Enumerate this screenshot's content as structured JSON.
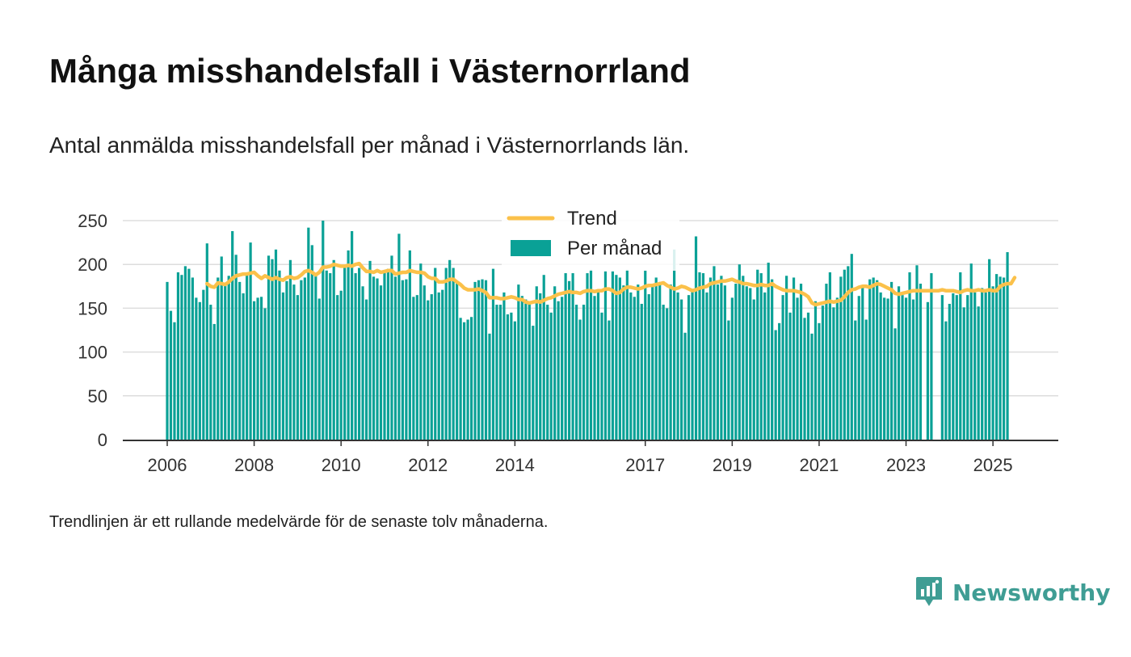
{
  "title": "Många misshandelsfall i Västernorrland",
  "subtitle": "Antal anmälda misshandelsfall per månad i Västernorrlands län.",
  "footnote": "Trendlinjen är ett rullande medelvärde för de senaste tolv månaderna.",
  "brand": {
    "name": "Newsworthy",
    "color": "#3f9d94"
  },
  "colors": {
    "bar": "#0aa196",
    "trend": "#fbc14a",
    "grid": "#dddddd",
    "axis": "#333333"
  },
  "chart_data": {
    "type": "bar",
    "title": "",
    "xlabel": "",
    "ylabel": "",
    "ylim": [
      0,
      250
    ],
    "yticks": [
      0,
      50,
      100,
      150,
      200,
      250
    ],
    "xticks": [
      "2006",
      "2008",
      "2010",
      "2012",
      "2014",
      "2017",
      "2019",
      "2021",
      "2023",
      "2025"
    ],
    "grid": true,
    "legend_position": "top-center",
    "start_month": "2006-01",
    "series": [
      {
        "name": "Per månad",
        "type": "bar",
        "values": [
          180,
          147,
          134,
          191,
          188,
          198,
          195,
          185,
          162,
          157,
          171,
          224,
          154,
          132,
          185,
          209,
          178,
          187,
          238,
          211,
          180,
          167,
          188,
          225,
          158,
          162,
          163,
          150,
          210,
          206,
          217,
          193,
          168,
          181,
          205,
          177,
          165,
          182,
          185,
          242,
          222,
          188,
          161,
          250,
          193,
          190,
          205,
          165,
          170,
          199,
          216,
          238,
          190,
          196,
          175,
          160,
          204,
          186,
          184,
          176,
          192,
          195,
          210,
          186,
          235,
          182,
          183,
          216,
          163,
          165,
          201,
          176,
          159,
          166,
          196,
          168,
          171,
          196,
          205,
          196,
          180,
          139,
          134,
          137,
          140,
          180,
          182,
          183,
          182,
          121,
          195,
          154,
          154,
          168,
          143,
          145,
          135,
          177,
          164,
          160,
          155,
          130,
          175,
          167,
          188,
          154,
          145,
          175,
          158,
          163,
          190,
          181,
          190,
          154,
          137,
          154,
          190,
          194,
          164,
          170,
          145,
          192,
          136,
          192,
          188,
          185,
          176,
          194,
          168,
          163,
          177,
          155,
          193,
          166,
          177,
          185,
          180,
          154,
          150,
          177,
          217,
          168,
          160,
          122,
          165,
          169,
          232,
          191,
          190,
          168,
          185,
          198,
          177,
          187,
          176,
          136,
          162,
          178,
          200,
          187,
          175,
          173,
          160,
          194,
          190,
          168,
          202,
          183,
          125,
          133,
          165,
          187,
          145,
          185,
          162,
          178,
          139,
          145,
          121,
          158,
          133,
          153,
          178,
          191,
          151,
          162,
          186,
          194,
          198,
          212,
          136,
          164,
          175,
          137,
          183,
          185,
          182,
          168,
          162,
          161,
          180,
          127,
          175,
          165,
          162,
          191,
          160,
          199,
          178,
          0,
          157,
          190,
          0,
          0,
          165,
          135,
          155,
          167,
          165,
          191,
          151,
          165,
          201,
          168,
          152,
          173,
          168,
          206,
          175,
          189,
          186,
          185,
          214
        ]
      },
      {
        "name": "Trend",
        "type": "line",
        "values": [
          null,
          null,
          null,
          null,
          null,
          null,
          null,
          null,
          null,
          null,
          null,
          178,
          175,
          174,
          179,
          178,
          177,
          180,
          184,
          187,
          188,
          189,
          189,
          190,
          191,
          187,
          184,
          187,
          185,
          183,
          185,
          183,
          182,
          185,
          186,
          184,
          185,
          188,
          192,
          193,
          191,
          188,
          191,
          197,
          197,
          198,
          200,
          199,
          198,
          198,
          199,
          198,
          200,
          201,
          196,
          192,
          192,
          191,
          193,
          191,
          192,
          193,
          193,
          189,
          190,
          191,
          191,
          193,
          192,
          191,
          191,
          190,
          186,
          184,
          184,
          180,
          180,
          181,
          183,
          183,
          180,
          177,
          173,
          171,
          171,
          171,
          172,
          170,
          168,
          162,
          162,
          162,
          161,
          161,
          162,
          163,
          162,
          160,
          160,
          157,
          156,
          157,
          158,
          157,
          159,
          161,
          162,
          164,
          166,
          167,
          168,
          169,
          168,
          168,
          167,
          169,
          170,
          170,
          169,
          170,
          170,
          172,
          172,
          170,
          167,
          168,
          172,
          174,
          174,
          173,
          172,
          173,
          175,
          176,
          176,
          177,
          178,
          179,
          176,
          174,
          172,
          173,
          175,
          174,
          172,
          170,
          171,
          173,
          174,
          175,
          178,
          179,
          180,
          181,
          181,
          182,
          183,
          181,
          180,
          178,
          178,
          177,
          176,
          176,
          177,
          176,
          176,
          178,
          175,
          173,
          171,
          170,
          170,
          170,
          169,
          168,
          166,
          163,
          156,
          154,
          155,
          156,
          157,
          158,
          157,
          158,
          159,
          163,
          168,
          171,
          172,
          174,
          175,
          175,
          174,
          176,
          178,
          177,
          175,
          173,
          171,
          167,
          166,
          167,
          168,
          169,
          170,
          170,
          170,
          170,
          170,
          170,
          170,
          170,
          171,
          170,
          170,
          170,
          169,
          168,
          170,
          171,
          170,
          170,
          171,
          170,
          170,
          171,
          170,
          170,
          175,
          177,
          178,
          178,
          185
        ]
      }
    ]
  }
}
